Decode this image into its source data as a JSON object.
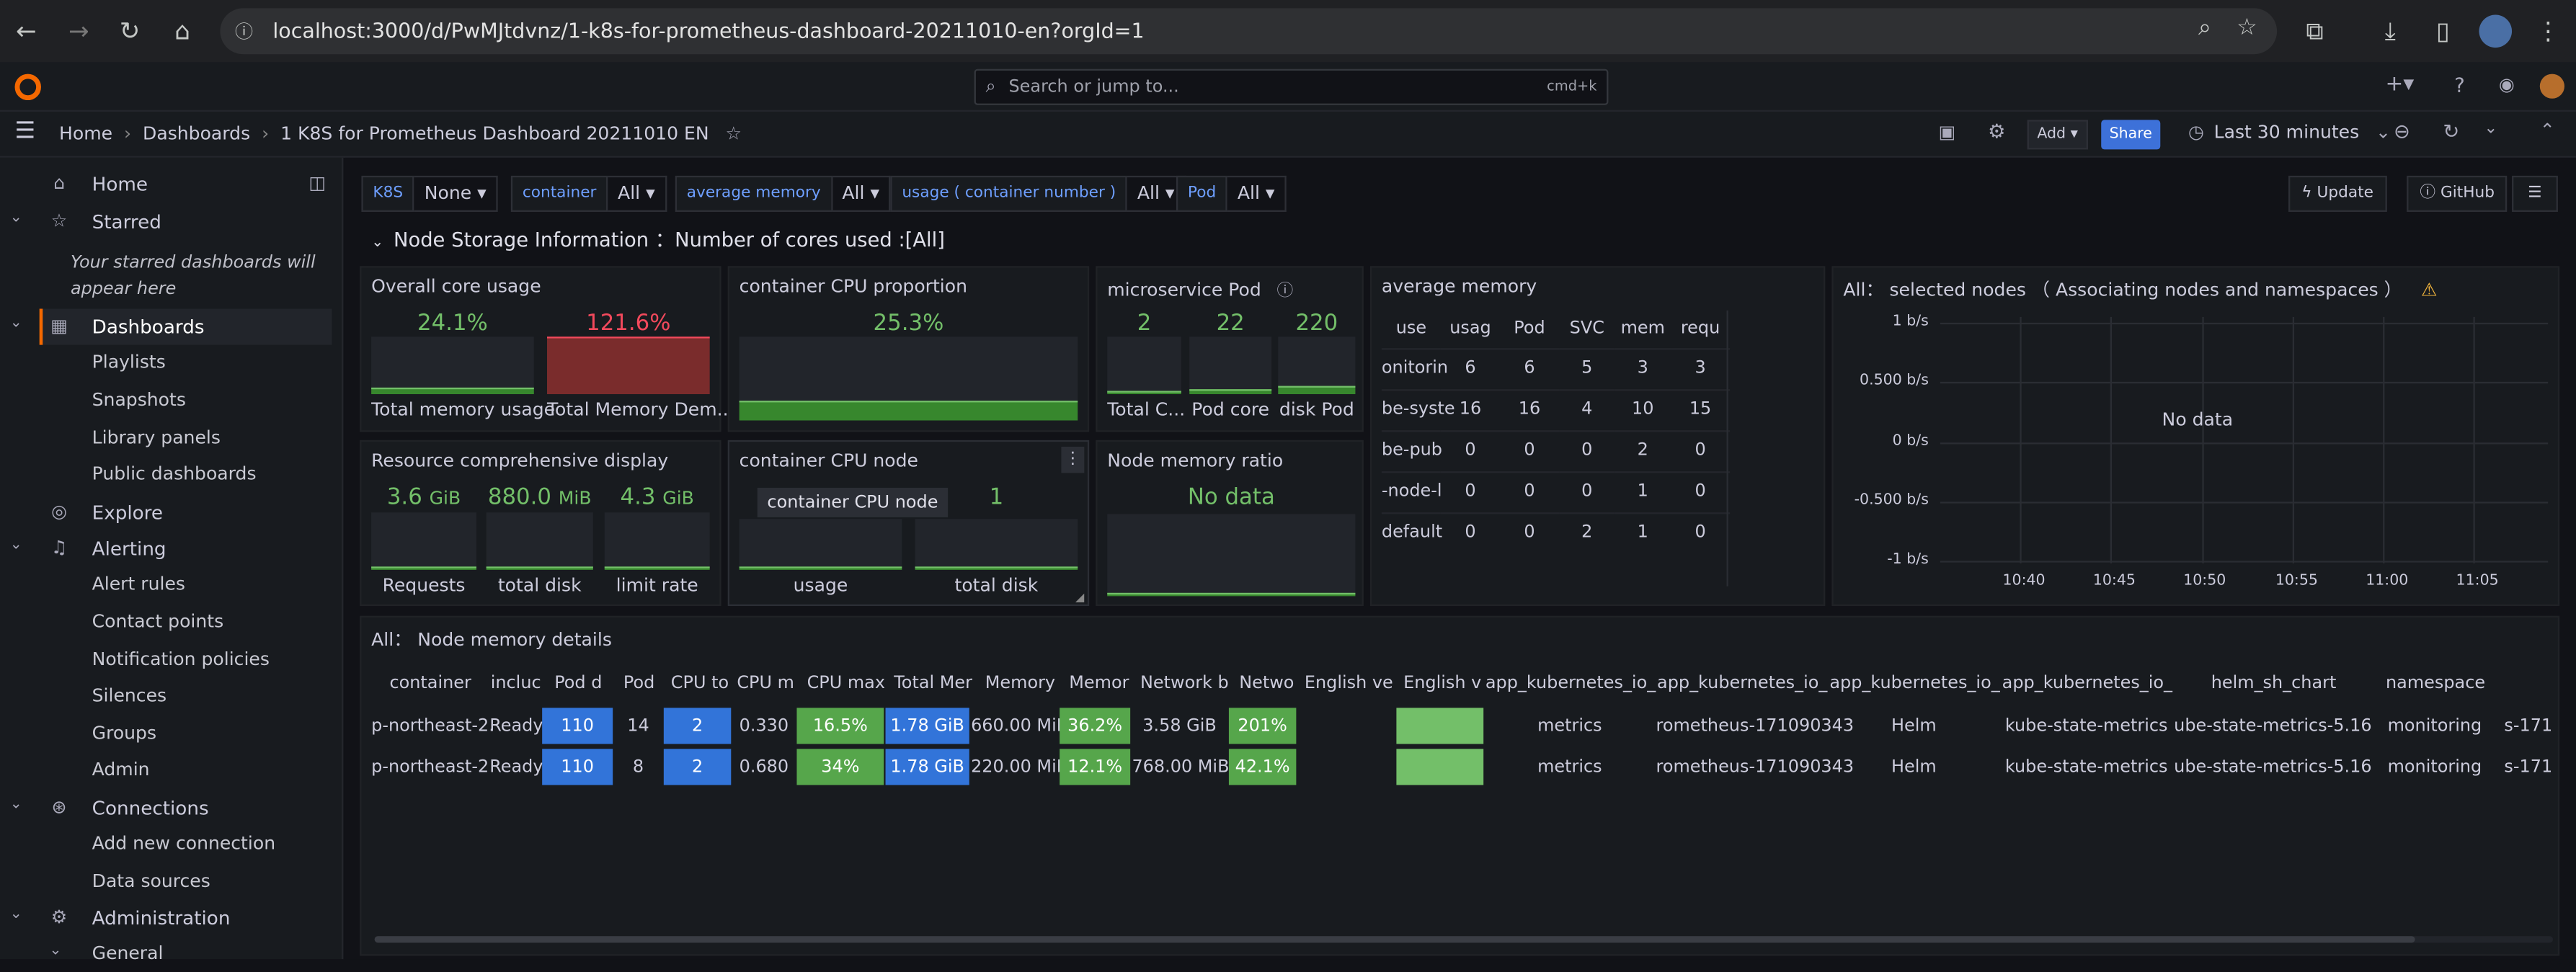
{
  "browser": {
    "url": "localhost:3000/d/PwMJtdvnz/1-k8s-for-prometheus-dashboard-20211010-en?orgId=1"
  },
  "topbar": {
    "search_placeholder": "Search or jump to...",
    "search_shortcut": "cmd+k"
  },
  "breadcrumb": {
    "home": "Home",
    "dashboards": "Dashboards",
    "current": "1 K8S for Prometheus Dashboard 20211010 EN"
  },
  "toolbar": {
    "add_label": "Add",
    "share_label": "Share",
    "time_range": "Last 30 minutes",
    "update_label": "Update",
    "github_label": "GitHub"
  },
  "sidebar": {
    "home": "Home",
    "starred": "Starred",
    "starred_empty": "Your starred dashboards will appear here",
    "dashboards": "Dashboards",
    "playlists": "Playlists",
    "snapshots": "Snapshots",
    "library_panels": "Library panels",
    "public_dashboards": "Public dashboards",
    "explore": "Explore",
    "alerting": "Alerting",
    "alert_rules": "Alert rules",
    "contact_points": "Contact points",
    "notification_policies": "Notification policies",
    "silences": "Silences",
    "groups": "Groups",
    "admin": "Admin",
    "connections": "Connections",
    "add_new_connection": "Add new connection",
    "data_sources": "Data sources",
    "administration": "Administration",
    "general": "General"
  },
  "variables": [
    {
      "label": "K8S",
      "value": "None"
    },
    {
      "label": "container",
      "value": "All"
    },
    {
      "label": "average memory",
      "value": "All"
    },
    {
      "label": "usage ( container number )",
      "value": "All"
    },
    {
      "label": "Pod",
      "value": "All"
    }
  ],
  "row_title": "Node Storage Information ：Number of cores used :[All]",
  "panels": {
    "overall_core": {
      "title": "Overall core usage",
      "stat1": "24.1%",
      "stat1_pct": 0.12,
      "label1": "Total memory usage",
      "stat2": "121.6%",
      "stat2_pct": 1.0,
      "label2": "Total Memory Dem..."
    },
    "container_cpu_proportion": {
      "title": "container CPU proportion",
      "stat": "25.3%",
      "pct": 0.25
    },
    "microservice_pod": {
      "title": "microservice Pod",
      "items": [
        {
          "value": "2",
          "label": "Total C...",
          "pct": 0.05
        },
        {
          "value": "22",
          "label": "Pod core",
          "pct": 0.1
        },
        {
          "value": "220",
          "label": "disk Pod",
          "pct": 0.15
        }
      ]
    },
    "average_memory": {
      "title": "average memory",
      "headers": [
        "use",
        "usag",
        "Pod",
        "SVC",
        "mem",
        "requ"
      ],
      "rows": [
        [
          "onitorin",
          "6",
          "6",
          "5",
          "3",
          "3"
        ],
        [
          "be-syste",
          "16",
          "16",
          "4",
          "10",
          "15"
        ],
        [
          "be-pub",
          "0",
          "0",
          "0",
          "2",
          "0"
        ],
        [
          "-node-l",
          "0",
          "0",
          "0",
          "1",
          "0"
        ],
        [
          "default",
          "0",
          "0",
          "2",
          "1",
          "0"
        ]
      ]
    },
    "selected_nodes": {
      "title": "All： selected nodes （ Associating nodes and namespaces ）",
      "no_data": "No data",
      "y_ticks": [
        "1 b/s",
        "0.500 b/s",
        "0 b/s",
        "-0.500 b/s",
        "-1 b/s"
      ],
      "x_ticks": [
        "10:40",
        "10:45",
        "10:50",
        "10:55",
        "11:00",
        "11:05"
      ]
    },
    "resource": {
      "title": "Resource comprehensive display",
      "items": [
        {
          "value": "3.6",
          "unit": "GiB",
          "label": "Requests",
          "pct": 0.05
        },
        {
          "value": "880.0",
          "unit": "MiB",
          "label": "total disk",
          "pct": 0.05
        },
        {
          "value": "4.3",
          "unit": "GiB",
          "label": "limit rate",
          "pct": 0.05
        }
      ]
    },
    "container_cpu_node": {
      "title": "container CPU node",
      "tooltip": "container CPU node",
      "value2": "1",
      "label1": "usage",
      "label2": "total disk"
    },
    "node_memory_ratio": {
      "title": "Node memory ratio",
      "no_data": "No data"
    },
    "node_memory_details": {
      "title": "All： Node memory details",
      "headers": [
        "container",
        "incluc",
        "Pod d",
        "Pod",
        "CPU to",
        "CPU m",
        "CPU max",
        "Total Mer",
        "Memory",
        "Memor",
        "Network b",
        "Netwo",
        "English ve",
        "English v",
        "app_kubernetes_io_",
        "app_kubernetes_io_",
        "app_kubernetes_io_",
        "app_kubernetes_io_",
        "helm_sh_chart",
        "namespace"
      ],
      "rows": [
        [
          "p-northeast-2.",
          "Ready",
          "110",
          "14",
          "2",
          "0.330",
          "16.5%",
          "1.78 GiB",
          "660.00 MiB",
          "36.2%",
          "3.58 GiB",
          "201%",
          "",
          "",
          "metrics",
          "rometheus-171090343",
          "Helm",
          "kube-state-metrics",
          "ube-state-metrics-5.16",
          "monitoring",
          "s-171"
        ],
        [
          "p-northeast-2",
          "Ready",
          "110",
          "8",
          "2",
          "0.680",
          "34%",
          "1.78 GiB",
          "220.00 MiB",
          "12.1%",
          "768.00 MiB",
          "42.1%",
          "",
          "",
          "metrics",
          "rometheus-171090343",
          "Helm",
          "kube-state-metrics",
          "ube-state-metrics-5.16",
          "monitoring",
          "s-171"
        ]
      ]
    }
  },
  "colors": {
    "accent_orange": "#f46800",
    "stat_green": "#73bf69",
    "stat_red": "#f2495c",
    "cell_blue": "#3274d9",
    "cell_green": "#56a64b",
    "link_blue": "#6e9fff"
  }
}
